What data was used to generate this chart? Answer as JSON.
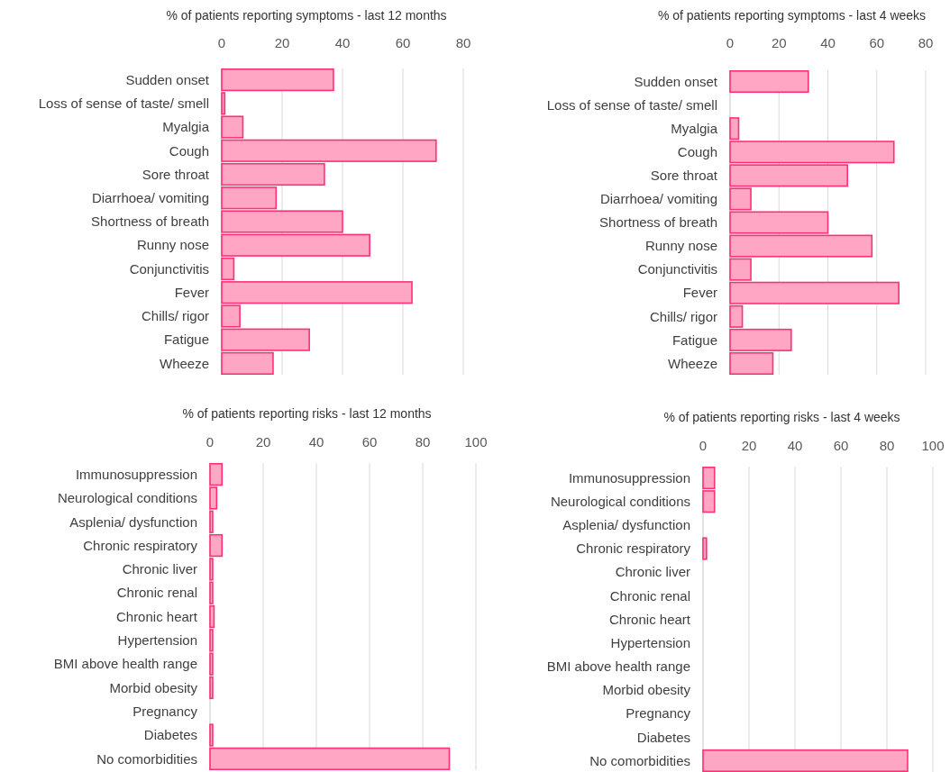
{
  "chart_data": [
    {
      "type": "bar",
      "orientation": "horizontal",
      "title": "% of patients reporting symptoms  - last 12 months",
      "categories": [
        "Sudden onset",
        "Loss of sense of taste/ smell",
        "Myalgia",
        "Cough",
        "Sore throat",
        "Diarrhoea/ vomiting",
        "Shortness of breath",
        "Runny nose",
        "Conjunctivitis",
        "Fever",
        "Chills/ rigor",
        "Fatigue",
        "Wheeze"
      ],
      "values": [
        37,
        1,
        7,
        71,
        34,
        18,
        40,
        49,
        4,
        63,
        6,
        29,
        17
      ],
      "color": "#ffa6c4",
      "xlim": [
        0,
        80
      ],
      "xticks": [
        0,
        20,
        40,
        60,
        80
      ],
      "grid": "x"
    },
    {
      "type": "bar",
      "orientation": "horizontal",
      "title": "% of patients reporting symptoms - last 4 weeks",
      "categories": [
        "Sudden onset",
        "Loss of sense of taste/ smell",
        "Myalgia",
        "Cough",
        "Sore throat",
        "Diarrhoea/ vomiting",
        "Shortness of breath",
        "Runny nose",
        "Conjunctivitis",
        "Fever",
        "Chills/ rigor",
        "Fatigue",
        "Wheeze"
      ],
      "values": [
        32,
        0,
        3.5,
        67,
        48,
        8.5,
        40,
        58,
        8.5,
        69,
        5,
        25,
        17.5
      ],
      "color": "#ffa6c4",
      "xlim": [
        0,
        80
      ],
      "xticks": [
        0,
        20,
        40,
        60,
        80
      ],
      "grid": "x"
    },
    {
      "type": "bar",
      "orientation": "horizontal",
      "title": "% of patients reporting risks - last 12 months",
      "categories": [
        "Immunosuppression",
        "Neurological conditions",
        "Asplenia/ dysfunction",
        "Chronic respiratory",
        "Chronic liver",
        "Chronic renal",
        "Chronic heart",
        "Hypertension",
        "BMI above health range",
        "Morbid obesity",
        "Pregnancy",
        "Diabetes",
        "No comorbidities"
      ],
      "values": [
        4.5,
        2.5,
        1,
        4.5,
        1,
        1,
        1.5,
        1,
        1,
        1,
        0,
        1,
        90
      ],
      "color": "#ffa6c4",
      "xlim": [
        0,
        100
      ],
      "xticks": [
        0,
        20,
        40,
        60,
        80,
        100
      ],
      "grid": "x"
    },
    {
      "type": "bar",
      "orientation": "horizontal",
      "title": "% of patients reporting risks - last 4 weeks",
      "categories": [
        "Immunosuppression",
        "Neurological conditions",
        "Asplenia/ dysfunction",
        "Chronic respiratory",
        "Chronic liver",
        "Chronic renal",
        "Chronic heart",
        "Hypertension",
        "BMI above health range",
        "Morbid obesity",
        "Pregnancy",
        "Diabetes",
        "No comorbidities"
      ],
      "values": [
        5,
        5,
        0,
        1.5,
        0,
        0,
        0,
        0,
        0,
        0,
        0,
        0,
        89
      ],
      "color": "#ffa6c4",
      "xlim": [
        0,
        100
      ],
      "xticks": [
        0,
        20,
        40,
        60,
        80,
        100
      ],
      "grid": "x"
    }
  ]
}
